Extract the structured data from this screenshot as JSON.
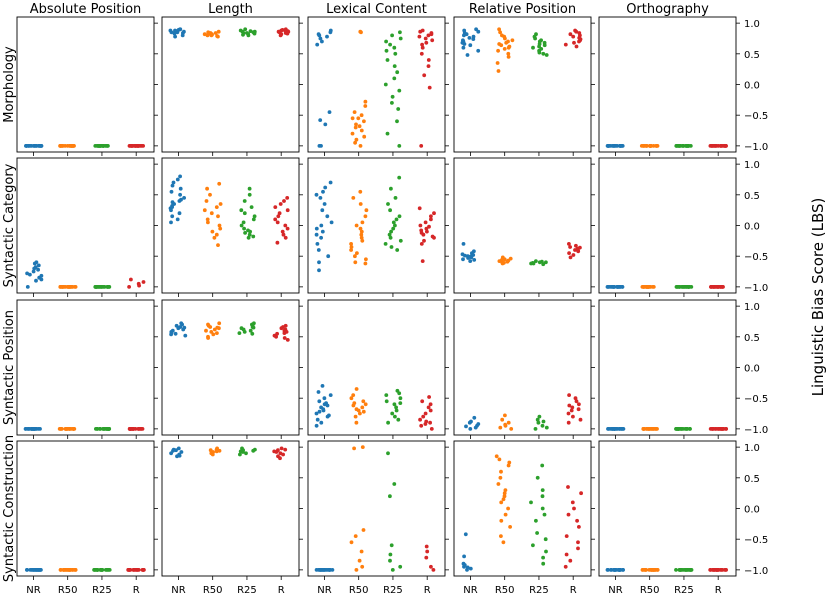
{
  "chart_data": {
    "type": "scatter",
    "subtype": "strip-plot-grid",
    "ylabel": "Linguistic Bias Score (LBS)",
    "ylim": [
      -1.1,
      1.1
    ],
    "yticks": [
      -1.0,
      -0.5,
      0.0,
      0.5,
      1.0
    ],
    "ytick_labels": [
      "−1.0",
      "−0.5",
      "0.0",
      "0.5",
      "1.0"
    ],
    "columns": [
      "Absolute Position",
      "Length",
      "Lexical Content",
      "Relative Position",
      "Orthography"
    ],
    "rows": [
      "Morphology",
      "Syntactic Category",
      "Syntactic Position",
      "Syntactic Construction"
    ],
    "categories": [
      "NR",
      "R50",
      "R25",
      "R"
    ],
    "category_colors": {
      "NR": "#1f77b4",
      "R50": "#ff7f0e",
      "R25": "#2ca02c",
      "R": "#d62728"
    },
    "points_per_group": 20,
    "cells": [
      [
        {
          "NR": [
            -1.0
          ],
          "R50": [
            -1.0
          ],
          "R25": [
            -1.0
          ],
          "R": [
            -1.0
          ]
        },
        {
          "NR": [
            0.9,
            0.88,
            0.86,
            0.84,
            0.8,
            0.85,
            0.87,
            0.89,
            0.83,
            0.78,
            0.86,
            0.88,
            0.9,
            0.85
          ],
          "R50": [
            0.86,
            0.84,
            0.82,
            0.8,
            0.78,
            0.83,
            0.85,
            0.81,
            0.79,
            0.84,
            0.82,
            0.8
          ],
          "R25": [
            0.88,
            0.86,
            0.84,
            0.82,
            0.8,
            0.85,
            0.87,
            0.83,
            0.81,
            0.86,
            0.84,
            0.9
          ],
          "R": [
            0.9,
            0.88,
            0.86,
            0.84,
            0.82,
            0.87,
            0.85,
            0.89,
            0.83,
            0.8,
            0.86,
            0.88
          ]
        },
        {
          "NR": [
            0.88,
            0.85,
            0.8,
            0.75,
            0.7,
            0.65,
            0.82,
            0.78,
            -0.45,
            -0.58,
            -0.65,
            -1.0,
            -1.0
          ],
          "R50": [
            0.86,
            0.85,
            -0.28,
            -0.35,
            -0.45,
            -0.5,
            -0.55,
            -0.6,
            -0.65,
            -0.7,
            -0.75,
            -0.8,
            -0.85,
            -0.9,
            -0.95,
            -1.0,
            -0.55,
            -0.68
          ],
          "R25": [
            0.85,
            0.8,
            0.75,
            0.7,
            0.6,
            0.5,
            0.4,
            0.3,
            0.2,
            0.1,
            0.0,
            -0.1,
            -0.2,
            -0.3,
            -0.4,
            -0.6,
            -0.8,
            -1.0,
            0.65,
            0.55
          ],
          "R": [
            0.88,
            0.86,
            0.84,
            0.82,
            0.8,
            0.78,
            0.75,
            0.72,
            0.68,
            0.65,
            0.6,
            0.5,
            0.4,
            0.3,
            0.15,
            -0.05,
            -1.0
          ]
        },
        {
          "NR": [
            0.9,
            0.88,
            0.86,
            0.84,
            0.82,
            0.8,
            0.78,
            0.76,
            0.74,
            0.72,
            0.7,
            0.68,
            0.66,
            0.64,
            0.6,
            0.55,
            0.48
          ],
          "R50": [
            0.9,
            0.85,
            0.8,
            0.78,
            0.75,
            0.72,
            0.7,
            0.68,
            0.66,
            0.64,
            0.62,
            0.6,
            0.58,
            0.55,
            0.5,
            0.45,
            0.35,
            0.22
          ],
          "R25": [
            0.82,
            0.78,
            0.75,
            0.72,
            0.7,
            0.68,
            0.66,
            0.64,
            0.62,
            0.6,
            0.58,
            0.55,
            0.52,
            0.5,
            0.48
          ],
          "R": [
            0.88,
            0.86,
            0.84,
            0.82,
            0.8,
            0.78,
            0.76,
            0.74,
            0.72,
            0.7,
            0.68,
            0.65,
            0.62
          ]
        },
        {
          "NR": [
            -1.0
          ],
          "R50": [
            -1.0
          ],
          "R25": [
            -1.0
          ],
          "R": [
            -1.0
          ]
        }
      ],
      [
        {
          "NR": [
            -0.6,
            -0.62,
            -0.65,
            -0.68,
            -0.7,
            -0.72,
            -0.75,
            -0.78,
            -0.8,
            -0.82,
            -0.85,
            -0.88,
            -0.9,
            -1.0
          ],
          "R50": [
            -1.0
          ],
          "R25": [
            -1.0
          ],
          "R": [
            -0.88,
            -0.92,
            -0.95,
            -0.98,
            -1.0
          ]
        },
        {
          "NR": [
            0.8,
            0.75,
            0.7,
            0.65,
            0.6,
            0.55,
            0.5,
            0.45,
            0.42,
            0.4,
            0.38,
            0.35,
            0.32,
            0.3,
            0.28,
            0.25,
            0.2,
            0.15,
            0.1,
            0.05
          ],
          "R50": [
            0.68,
            0.6,
            0.5,
            0.4,
            0.35,
            0.3,
            0.25,
            0.2,
            0.15,
            0.1,
            0.05,
            0.0,
            -0.05,
            -0.1,
            -0.15,
            -0.2,
            -0.32
          ],
          "R25": [
            0.6,
            0.5,
            0.4,
            0.3,
            0.25,
            0.2,
            0.15,
            0.1,
            0.05,
            0.0,
            -0.05,
            -0.08,
            -0.1,
            -0.12,
            -0.15,
            -0.18,
            -0.2
          ],
          "R": [
            0.45,
            0.4,
            0.35,
            0.3,
            0.25,
            0.2,
            0.15,
            0.1,
            0.05,
            0.0,
            -0.05,
            -0.1,
            -0.15,
            -0.2,
            -0.28
          ]
        },
        {
          "NR": [
            0.7,
            0.62,
            0.55,
            0.5,
            0.45,
            0.35,
            0.25,
            0.15,
            0.05,
            0.0,
            -0.05,
            -0.1,
            -0.15,
            -0.2,
            -0.3,
            -0.4,
            -0.5,
            -0.6,
            -0.73
          ],
          "R50": [
            0.55,
            0.45,
            0.35,
            0.25,
            0.15,
            0.05,
            0.0,
            -0.05,
            -0.1,
            -0.15,
            -0.2,
            -0.25,
            -0.3,
            -0.35,
            -0.4,
            -0.45,
            -0.5,
            -0.55,
            -0.6,
            -0.62
          ],
          "R25": [
            0.78,
            0.6,
            0.45,
            0.35,
            0.25,
            0.15,
            0.1,
            0.05,
            0.0,
            -0.05,
            -0.1,
            -0.15,
            -0.2,
            -0.25,
            -0.3,
            -0.35,
            -0.4
          ],
          "R": [
            0.28,
            0.2,
            0.15,
            0.1,
            0.05,
            0.0,
            -0.02,
            -0.05,
            -0.08,
            -0.1,
            -0.12,
            -0.15,
            -0.18,
            -0.2,
            -0.25,
            -0.3,
            -0.58
          ]
        },
        {
          "NR": [
            -0.3,
            -0.42,
            -0.45,
            -0.48,
            -0.5,
            -0.52,
            -0.55,
            -0.58,
            -0.5,
            -0.53,
            -0.47,
            -0.56,
            -0.51,
            -0.49
          ],
          "R50": [
            -0.52,
            -0.55,
            -0.56,
            -0.58,
            -0.6,
            -0.62,
            -0.57,
            -0.54,
            -0.59,
            -0.61
          ],
          "R25": [
            -0.58,
            -0.6,
            -0.61,
            -0.62,
            -0.63,
            -0.6,
            -0.59,
            -0.62
          ],
          "R": [
            -0.3,
            -0.33,
            -0.35,
            -0.38,
            -0.4,
            -0.42,
            -0.45,
            -0.48,
            -0.52,
            -0.36,
            -0.41
          ]
        },
        {
          "NR": [
            -1.0
          ],
          "R50": [
            -1.0
          ],
          "R25": [
            -1.0
          ],
          "R": [
            -1.0
          ]
        }
      ],
      [
        {
          "NR": [
            -1.0
          ],
          "R50": [
            -1.0
          ],
          "R25": [
            -1.0
          ],
          "R": [
            -1.0
          ]
        },
        {
          "NR": [
            0.72,
            0.7,
            0.68,
            0.66,
            0.65,
            0.64,
            0.62,
            0.6,
            0.58,
            0.56,
            0.55,
            0.54,
            0.52
          ],
          "R50": [
            0.72,
            0.7,
            0.68,
            0.66,
            0.65,
            0.64,
            0.62,
            0.6,
            0.58,
            0.56,
            0.54,
            0.5,
            0.48
          ],
          "R25": [
            0.72,
            0.7,
            0.68,
            0.66,
            0.65,
            0.64,
            0.62,
            0.6,
            0.58,
            0.56,
            0.55
          ],
          "R": [
            0.68,
            0.66,
            0.64,
            0.62,
            0.6,
            0.58,
            0.56,
            0.55,
            0.52,
            0.5,
            0.48,
            0.45
          ]
        },
        {
          "NR": [
            -0.3,
            -0.4,
            -0.45,
            -0.5,
            -0.55,
            -0.58,
            -0.6,
            -0.62,
            -0.65,
            -0.68,
            -0.7,
            -0.72,
            -0.75,
            -0.78,
            -0.8,
            -0.85,
            -0.9,
            -0.95
          ],
          "R50": [
            -0.35,
            -0.45,
            -0.5,
            -0.55,
            -0.58,
            -0.6,
            -0.62,
            -0.65,
            -0.68,
            -0.7,
            -0.72,
            -0.75,
            -0.8,
            -0.9
          ],
          "R25": [
            -0.38,
            -0.42,
            -0.45,
            -0.5,
            -0.55,
            -0.58,
            -0.6,
            -0.65,
            -0.7,
            -0.75,
            -0.8,
            -0.85,
            -0.9
          ],
          "R": [
            -0.48,
            -0.55,
            -0.6,
            -0.65,
            -0.7,
            -0.75,
            -0.8,
            -0.85,
            -0.88,
            -0.9,
            -0.92,
            -0.95,
            -1.0
          ]
        },
        {
          "NR": [
            -0.82,
            -0.88,
            -0.92,
            -0.95,
            -0.98,
            -1.0,
            -0.9,
            -0.96
          ],
          "R50": [
            -0.78,
            -0.85,
            -0.9,
            -0.95,
            -0.98,
            -1.0,
            -0.93
          ],
          "R25": [
            -0.8,
            -0.85,
            -0.9,
            -0.95,
            -0.98,
            -1.0,
            -0.88
          ],
          "R": [
            -0.45,
            -0.5,
            -0.55,
            -0.6,
            -0.65,
            -0.7,
            -0.75,
            -0.8,
            -0.85,
            -0.9,
            -0.62,
            -0.68
          ]
        },
        {
          "NR": [
            -1.0
          ],
          "R50": [
            -1.0
          ],
          "R25": [
            -1.0
          ],
          "R": [
            -1.0
          ]
        }
      ],
      [
        {
          "NR": [
            -1.0
          ],
          "R50": [
            -1.0
          ],
          "R25": [
            -1.0
          ],
          "R": [
            -1.0
          ]
        },
        {
          "NR": [
            0.98,
            0.96,
            0.95,
            0.94,
            0.92,
            0.9,
            0.88,
            0.86,
            0.85
          ],
          "R50": [
            0.98,
            0.96,
            0.95,
            0.94,
            0.93,
            0.92,
            0.9,
            0.88
          ],
          "R25": [
            0.98,
            0.96,
            0.95,
            0.94,
            0.93,
            0.92,
            0.9,
            0.88
          ],
          "R": [
            0.98,
            0.96,
            0.95,
            0.93,
            0.92,
            0.9,
            0.88,
            0.85,
            0.82
          ]
        },
        {
          "NR": [
            -1.0
          ],
          "R50": [
            1.0,
            0.98,
            -0.35,
            -0.45,
            -0.55,
            -0.7,
            -0.85,
            -0.95,
            -1.0
          ],
          "R25": [
            0.9,
            0.4,
            0.2,
            -0.6,
            -0.75,
            -0.85,
            -0.95,
            -1.0
          ],
          "R": [
            -0.62,
            -0.7,
            -0.8,
            -0.95,
            -1.0
          ]
        },
        {
          "NR": [
            -0.42,
            -0.78,
            -0.9,
            -0.95,
            -0.98,
            -1.0,
            -0.92,
            -0.96
          ],
          "R50": [
            0.85,
            0.8,
            0.75,
            0.7,
            0.6,
            0.5,
            0.4,
            0.3,
            0.25,
            0.2,
            0.15,
            0.1,
            0.0,
            -0.1,
            -0.2,
            -0.3,
            -0.45,
            -0.55
          ],
          "R25": [
            0.7,
            0.5,
            0.3,
            0.2,
            0.1,
            0.0,
            -0.1,
            -0.2,
            -0.4,
            -0.5,
            -0.6,
            -0.7,
            -0.8,
            -0.9
          ],
          "R": [
            0.35,
            0.25,
            0.1,
            0.0,
            -0.1,
            -0.2,
            -0.3,
            -0.45,
            -0.55,
            -0.65,
            -0.75,
            -0.85,
            -0.95
          ]
        },
        {
          "NR": [
            -1.0
          ],
          "R50": [
            -1.0
          ],
          "R25": [
            -1.0
          ],
          "R": [
            -1.0
          ]
        }
      ]
    ]
  }
}
